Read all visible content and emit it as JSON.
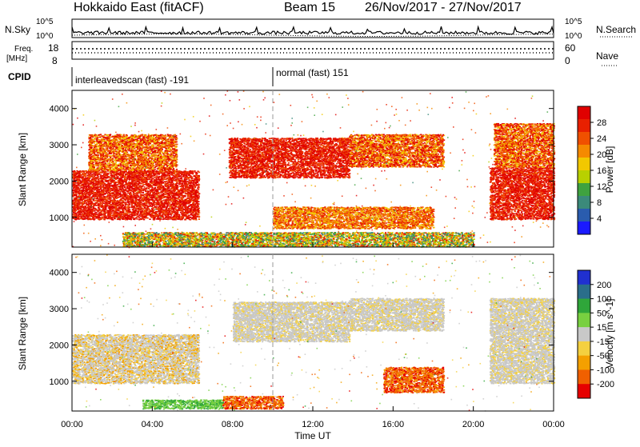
{
  "header": {
    "title": "Hokkaido East (fitACF)",
    "beam": "Beam 15",
    "dates": "26/Nov/2017 - 27/Nov/2017"
  },
  "strips": {
    "nsky_label": "N.Sky",
    "nsearch_label": "N.Search",
    "nsky_ticks": [
      "10^5",
      "10^0"
    ],
    "nsearch_ticks": [
      "10^5",
      "10^0"
    ],
    "freq_label_1": "Freq.",
    "freq_label_2": "[MHz]",
    "freq_ticks": [
      "18",
      "8"
    ],
    "nave_label": "Nave",
    "nave_ticks": [
      "60",
      "0"
    ],
    "cpid_label": "CPID",
    "cpid_segments": [
      {
        "label": "interleavedscan (fast) -191",
        "start_h": 0,
        "end_h": 10
      },
      {
        "label": "normal (fast) 151",
        "start_h": 10,
        "end_h": 24
      }
    ]
  },
  "axes": {
    "ylabel": "Slant Range [km]",
    "xlabel": "Time UT",
    "yticks": [
      "4000",
      "3000",
      "2000",
      "1000"
    ],
    "xticks": [
      "00:00",
      "04:00",
      "08:00",
      "12:00",
      "16:00",
      "20:00",
      "00:00"
    ]
  },
  "colors": {
    "power": [
      "#1a1aff",
      "#2a5cae",
      "#3b8a7a",
      "#3fa23f",
      "#b8d000",
      "#f2c800",
      "#f58a00",
      "#f05000",
      "#e82000",
      "#e00000"
    ],
    "velocity": [
      "#e60000",
      "#f06000",
      "#f4a000",
      "#f4d040",
      "#c8c8c8",
      "#78d040",
      "#2fa63a",
      "#2a6e8a",
      "#2030d0"
    ],
    "ground_scatter": "#c0c0c0"
  },
  "chart_data": [
    {
      "type": "heatmap",
      "name": "power",
      "xlabel": "Time UT",
      "ylabel": "Slant Range [km]",
      "xlim_hours": [
        0,
        24
      ],
      "ylim_km": [
        180,
        4500
      ],
      "colorbar_label": "Power [dB]",
      "colorbar_ticks": [
        "28",
        "24",
        "20",
        "16",
        "12",
        "8",
        "4"
      ],
      "colorbar_range": [
        0,
        30
      ],
      "regions": [
        {
          "t0": 0.0,
          "t1": 6.3,
          "r0": 950,
          "r1": 2300,
          "level": "red"
        },
        {
          "t0": 0.8,
          "t1": 5.2,
          "r0": 2300,
          "r1": 3300,
          "level": "orange-red"
        },
        {
          "t0": 7.8,
          "t1": 13.8,
          "r0": 2100,
          "r1": 3200,
          "level": "red"
        },
        {
          "t0": 13.8,
          "t1": 18.5,
          "r0": 2400,
          "r1": 3300,
          "level": "orange-red"
        },
        {
          "t0": 10.0,
          "t1": 18.0,
          "r0": 700,
          "r1": 1300,
          "level": "orange"
        },
        {
          "t0": 20.8,
          "t1": 24.0,
          "r0": 950,
          "r1": 2400,
          "level": "red"
        },
        {
          "t0": 21.0,
          "t1": 24.0,
          "r0": 2400,
          "r1": 3600,
          "level": "orange-red"
        },
        {
          "t0": 2.5,
          "t1": 20.0,
          "r0": 200,
          "r1": 600,
          "level": "mixed"
        }
      ]
    },
    {
      "type": "heatmap",
      "name": "velocity",
      "xlabel": "Time UT",
      "ylabel": "Slant Range [km]",
      "xlim_hours": [
        0,
        24
      ],
      "ylim_km": [
        180,
        4500
      ],
      "colorbar_label": "Velocity [m s^-1]",
      "colorbar_ticks": [
        "200",
        "100",
        "50",
        "15",
        "-15",
        "-50",
        "-100",
        "-200"
      ],
      "colorbar_range": [
        -250,
        250
      ],
      "regions": [
        {
          "t0": 0.0,
          "t1": 6.3,
          "r0": 950,
          "r1": 2300,
          "level": "grey-orange"
        },
        {
          "t0": 8.0,
          "t1": 13.8,
          "r0": 2100,
          "r1": 3200,
          "level": "grey"
        },
        {
          "t0": 13.8,
          "t1": 18.5,
          "r0": 2400,
          "r1": 3300,
          "level": "grey"
        },
        {
          "t0": 15.5,
          "t1": 18.5,
          "r0": 700,
          "r1": 1400,
          "level": "orange"
        },
        {
          "t0": 3.5,
          "t1": 7.5,
          "r0": 250,
          "r1": 500,
          "level": "green"
        },
        {
          "t0": 7.5,
          "t1": 10.5,
          "r0": 250,
          "r1": 600,
          "level": "orange"
        },
        {
          "t0": 20.8,
          "t1": 24.0,
          "r0": 950,
          "r1": 3300,
          "level": "grey"
        }
      ]
    }
  ]
}
